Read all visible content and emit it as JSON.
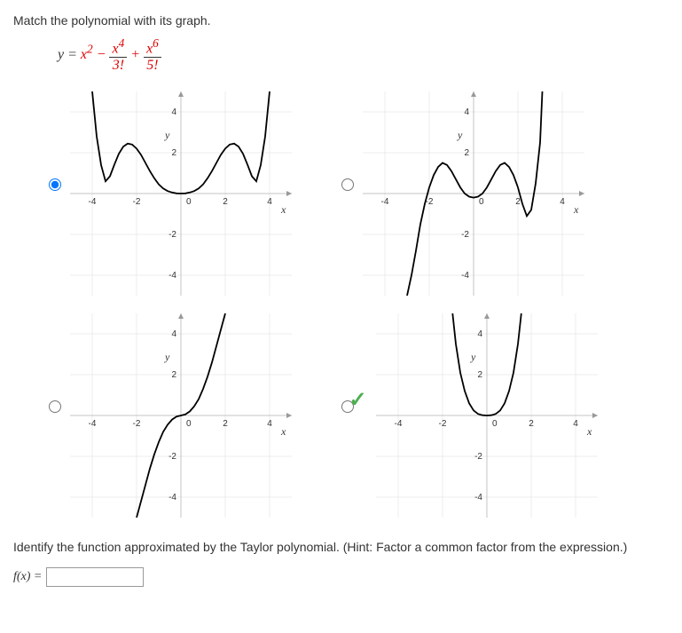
{
  "question_prompt": "Match the polynomial with its graph.",
  "formula": {
    "prefix": "y = ",
    "term1": "x",
    "term1_sup": "2",
    "minus": " − ",
    "frac1_num": "x",
    "frac1_num_sup": "4",
    "frac1_den": "3!",
    "plus": " + ",
    "frac2_num": "x",
    "frac2_num_sup": "6",
    "frac2_den": "5!"
  },
  "charts": [
    {
      "id": "chart-a",
      "selected": true,
      "xmin": -5,
      "xmax": 5,
      "ymin": -5,
      "ymax": 5,
      "xticks": [
        -4,
        -2,
        0,
        2,
        4
      ],
      "yticks": [
        -4,
        -2,
        2,
        4
      ],
      "xlabel": "x",
      "ylabel": "y",
      "curve_points": [
        [
          -4.0,
          5.0
        ],
        [
          -3.8,
          2.8
        ],
        [
          -3.6,
          1.4
        ],
        [
          -3.4,
          0.6
        ],
        [
          -3.2,
          0.85
        ],
        [
          -3.0,
          1.42
        ],
        [
          -2.8,
          1.95
        ],
        [
          -2.6,
          2.3
        ],
        [
          -2.4,
          2.45
        ],
        [
          -2.2,
          2.4
        ],
        [
          -2.0,
          2.2
        ],
        [
          -1.8,
          1.9
        ],
        [
          -1.6,
          1.5
        ],
        [
          -1.4,
          1.1
        ],
        [
          -1.2,
          0.75
        ],
        [
          -1.0,
          0.45
        ],
        [
          -0.8,
          0.25
        ],
        [
          -0.6,
          0.12
        ],
        [
          -0.4,
          0.05
        ],
        [
          -0.2,
          0.01
        ],
        [
          0,
          0
        ],
        [
          0.2,
          0.01
        ],
        [
          0.4,
          0.05
        ],
        [
          0.6,
          0.12
        ],
        [
          0.8,
          0.25
        ],
        [
          1.0,
          0.45
        ],
        [
          1.2,
          0.75
        ],
        [
          1.4,
          1.1
        ],
        [
          1.6,
          1.5
        ],
        [
          1.8,
          1.9
        ],
        [
          2.0,
          2.2
        ],
        [
          2.2,
          2.4
        ],
        [
          2.4,
          2.45
        ],
        [
          2.6,
          2.3
        ],
        [
          2.8,
          1.95
        ],
        [
          3.0,
          1.42
        ],
        [
          3.2,
          0.85
        ],
        [
          3.4,
          0.6
        ],
        [
          3.6,
          1.4
        ],
        [
          3.8,
          2.8
        ],
        [
          4.0,
          5.0
        ]
      ]
    },
    {
      "id": "chart-b",
      "selected": false,
      "xmin": -5,
      "xmax": 5,
      "ymin": -5,
      "ymax": 5,
      "xticks": [
        -4,
        -2,
        0,
        2,
        4
      ],
      "yticks": [
        -4,
        -2,
        2,
        4
      ],
      "xlabel": "x",
      "ylabel": "y",
      "curve_points": [
        [
          -3.0,
          -5.0
        ],
        [
          -2.8,
          -4.0
        ],
        [
          -2.6,
          -2.8
        ],
        [
          -2.4,
          -1.5
        ],
        [
          -2.2,
          -0.5
        ],
        [
          -2.0,
          0.3
        ],
        [
          -1.8,
          0.9
        ],
        [
          -1.6,
          1.3
        ],
        [
          -1.4,
          1.5
        ],
        [
          -1.2,
          1.4
        ],
        [
          -1.0,
          1.1
        ],
        [
          -0.8,
          0.7
        ],
        [
          -0.6,
          0.3
        ],
        [
          -0.4,
          0.0
        ],
        [
          -0.2,
          -0.15
        ],
        [
          0,
          -0.2
        ],
        [
          0.2,
          -0.15
        ],
        [
          0.4,
          0.0
        ],
        [
          0.6,
          0.3
        ],
        [
          0.8,
          0.7
        ],
        [
          1.0,
          1.1
        ],
        [
          1.2,
          1.4
        ],
        [
          1.4,
          1.5
        ],
        [
          1.6,
          1.3
        ],
        [
          1.8,
          0.9
        ],
        [
          2.0,
          0.3
        ],
        [
          2.2,
          -0.5
        ],
        [
          2.4,
          -1.1
        ],
        [
          2.6,
          -0.8
        ],
        [
          2.8,
          0.5
        ],
        [
          3.0,
          2.5
        ],
        [
          3.1,
          5.0
        ]
      ]
    },
    {
      "id": "chart-c",
      "selected": false,
      "xmin": -5,
      "xmax": 5,
      "ymin": -5,
      "ymax": 5,
      "xticks": [
        -4,
        -2,
        0,
        2,
        4
      ],
      "yticks": [
        -4,
        -2,
        2,
        4
      ],
      "xlabel": "x",
      "ylabel": "y",
      "curve_points": [
        [
          -2.0,
          -5.0
        ],
        [
          -1.8,
          -4.2
        ],
        [
          -1.6,
          -3.4
        ],
        [
          -1.4,
          -2.6
        ],
        [
          -1.2,
          -1.9
        ],
        [
          -1.0,
          -1.3
        ],
        [
          -0.8,
          -0.8
        ],
        [
          -0.6,
          -0.45
        ],
        [
          -0.4,
          -0.2
        ],
        [
          -0.2,
          -0.05
        ],
        [
          0,
          0
        ],
        [
          0.2,
          0.05
        ],
        [
          0.4,
          0.2
        ],
        [
          0.6,
          0.45
        ],
        [
          0.8,
          0.8
        ],
        [
          1.0,
          1.3
        ],
        [
          1.2,
          1.9
        ],
        [
          1.4,
          2.6
        ],
        [
          1.6,
          3.4
        ],
        [
          1.8,
          4.2
        ],
        [
          2.0,
          5.0
        ]
      ]
    },
    {
      "id": "chart-d",
      "selected": false,
      "checkmark": true,
      "xmin": -5,
      "xmax": 5,
      "ymin": -5,
      "ymax": 5,
      "xticks": [
        -4,
        -2,
        0,
        2,
        4
      ],
      "yticks": [
        -4,
        -2,
        2,
        4
      ],
      "xlabel": "x",
      "ylabel": "y",
      "curve_points": [
        [
          -1.55,
          5.0
        ],
        [
          -1.4,
          3.5
        ],
        [
          -1.2,
          2.1
        ],
        [
          -1.0,
          1.2
        ],
        [
          -0.8,
          0.6
        ],
        [
          -0.6,
          0.25
        ],
        [
          -0.4,
          0.08
        ],
        [
          -0.2,
          0.015
        ],
        [
          0,
          0
        ],
        [
          0.2,
          0.015
        ],
        [
          0.4,
          0.08
        ],
        [
          0.6,
          0.25
        ],
        [
          0.8,
          0.6
        ],
        [
          1.0,
          1.2
        ],
        [
          1.2,
          2.1
        ],
        [
          1.4,
          3.5
        ],
        [
          1.55,
          5.0
        ]
      ]
    }
  ],
  "identify_prompt": "Identify the function approximated by the Taylor polynomial. (Hint: Factor a common factor from the expression.)",
  "answer_label": "f(x) =",
  "answer_value": ""
}
